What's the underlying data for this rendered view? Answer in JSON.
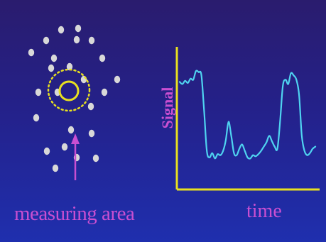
{
  "labels": {
    "measuring_area": "measuring area",
    "time": "time",
    "signal": "Signal"
  },
  "colors": {
    "background_top": "#2a1c6e",
    "background_bottom": "#1f2fae",
    "particle": "#d8d8d8",
    "measuring_ring": "#e8e020",
    "measuring_dotted_ring": "#e8e020",
    "arrow": "#c94fd1",
    "axes": "#e8e020",
    "signal_trace": "#4fd3f0",
    "label_text": "#c94fd1"
  },
  "chart_data": {
    "type": "line",
    "title": "",
    "xlabel": "time",
    "ylabel": "Signal",
    "x": [
      0,
      2,
      4,
      6,
      8,
      10,
      12,
      14,
      16,
      18,
      20,
      22,
      24,
      26,
      28,
      30,
      32,
      34,
      36,
      38,
      40,
      42,
      44,
      46,
      48,
      50,
      52,
      54,
      56,
      58,
      60,
      62,
      64,
      66,
      68,
      70,
      72,
      74,
      76,
      78,
      80,
      82,
      84,
      86,
      88,
      90,
      92,
      94,
      96,
      98,
      100
    ],
    "y": [
      82,
      80,
      83,
      81,
      85,
      84,
      92,
      91,
      88,
      55,
      18,
      12,
      16,
      11,
      15,
      14,
      18,
      28,
      45,
      32,
      16,
      14,
      20,
      24,
      18,
      12,
      11,
      14,
      13,
      15,
      18,
      22,
      26,
      32,
      27,
      22,
      20,
      45,
      78,
      84,
      80,
      90,
      88,
      84,
      70,
      32,
      18,
      14,
      16,
      20,
      22
    ],
    "xlim": [
      0,
      100
    ],
    "ylim": [
      0,
      100
    ],
    "grid": false,
    "legend": "none"
  }
}
